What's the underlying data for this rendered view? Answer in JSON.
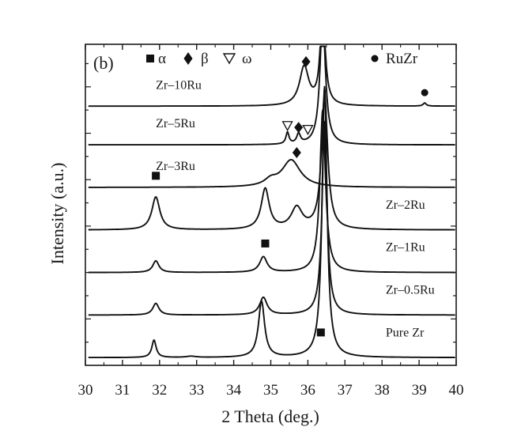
{
  "chart_data": {
    "type": "line",
    "panel_label": "(b)",
    "xlabel": "2 Theta (deg.)",
    "ylabel": "Intensity (a.u.)",
    "xlim": [
      30,
      40
    ],
    "xticks": [
      "30",
      "31",
      "32",
      "33",
      "34",
      "35",
      "36",
      "37",
      "38",
      "39",
      "40"
    ],
    "yticks_labeled": false,
    "grid": false,
    "legend": {
      "placement": "top",
      "entries": [
        {
          "symbol": "■",
          "label": "α",
          "marker": "square"
        },
        {
          "symbol": "◆",
          "label": "β",
          "marker": "diamond"
        },
        {
          "symbol": "▽",
          "label": "ω",
          "marker": "triangle-down-open"
        },
        {
          "symbol": "●",
          "label": "RuZr",
          "marker": "circle"
        }
      ]
    },
    "series": [
      {
        "name": "Pure Zr",
        "label_position": "right",
        "baseline": 0.2,
        "peaks": [
          [
            31.85,
            0.45,
            0.07
          ],
          [
            32.85,
            0.03,
            0.15
          ],
          [
            34.75,
            1.45,
            0.1
          ],
          [
            36.45,
            7.0,
            0.08
          ]
        ],
        "markers": [
          {
            "type": "square",
            "x": 36.35,
            "y": 0.85
          }
        ]
      },
      {
        "name": "Zr–0.5Ru",
        "label_position": "right",
        "baseline": 1.3,
        "peaks": [
          [
            31.9,
            0.3,
            0.1
          ],
          [
            34.8,
            0.45,
            0.12
          ],
          [
            36.45,
            5.0,
            0.08
          ]
        ],
        "markers": []
      },
      {
        "name": "Zr–1Ru",
        "label_position": "right",
        "baseline": 2.4,
        "peaks": [
          [
            31.9,
            0.3,
            0.1
          ],
          [
            34.8,
            0.4,
            0.12
          ],
          [
            36.4,
            4.2,
            0.09
          ]
        ],
        "markers": [
          {
            "type": "square",
            "x": 34.85,
            "y": 3.15
          }
        ]
      },
      {
        "name": "Zr–2Ru",
        "label_position": "right",
        "baseline": 3.5,
        "peaks": [
          [
            31.9,
            0.85,
            0.13
          ],
          [
            34.85,
            1.05,
            0.13
          ],
          [
            35.7,
            0.55,
            0.18
          ],
          [
            36.45,
            3.5,
            0.1
          ]
        ],
        "markers": [
          {
            "type": "square",
            "x": 31.9,
            "y": 4.9
          },
          {
            "type": "diamond",
            "x": 35.7,
            "y": 5.5
          }
        ]
      },
      {
        "name": "Zr–3Ru",
        "label_position": "left",
        "baseline": 4.6,
        "peaks": [
          [
            35.55,
            0.7,
            0.3
          ],
          [
            35.0,
            0.15,
            0.2
          ]
        ],
        "markers": []
      },
      {
        "name": "Zr–5Ru",
        "label_position": "left",
        "baseline": 5.7,
        "peaks": [
          [
            35.45,
            0.3,
            0.05
          ],
          [
            35.75,
            0.25,
            0.06
          ],
          [
            36.4,
            3.3,
            0.09
          ]
        ],
        "markers": [
          {
            "type": "triangle-down-open",
            "x": 35.45,
            "y": 6.2
          },
          {
            "type": "diamond",
            "x": 35.75,
            "y": 6.15
          },
          {
            "type": "triangle-down-open",
            "x": 36.0,
            "y": 6.1
          }
        ]
      },
      {
        "name": "Zr–10Ru",
        "label_position": "left",
        "baseline": 6.7,
        "peaks": [
          [
            35.9,
            1.0,
            0.15
          ],
          [
            36.4,
            2.5,
            0.08
          ],
          [
            39.15,
            0.08,
            0.05
          ]
        ],
        "markers": [
          {
            "type": "diamond",
            "x": 35.95,
            "y": 7.85
          },
          {
            "type": "circle",
            "x": 39.15,
            "y": 7.05
          }
        ]
      }
    ]
  }
}
